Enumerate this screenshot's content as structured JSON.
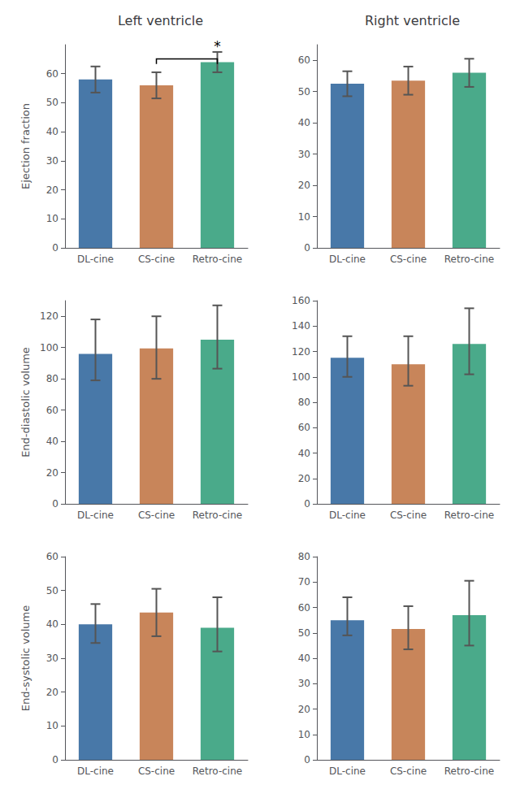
{
  "chart_data": [
    {
      "type": "bar",
      "title": "Left ventricle",
      "ylabel": "Ejection fraction",
      "categories": [
        "DL-cine",
        "CS-cine",
        "Retro-cine"
      ],
      "colors": [
        "#4878a8",
        "#c8855a",
        "#4aaa8a"
      ],
      "values": [
        58.0,
        56.0,
        64.0
      ],
      "err_low": [
        4.5,
        4.5,
        3.5
      ],
      "err_high": [
        4.5,
        4.5,
        3.5
      ],
      "annotations": [
        {
          "text": "*",
          "between": [
            "CS-cine",
            "Retro-cine"
          ]
        }
      ],
      "ylim": [
        0,
        70
      ],
      "yticks": [
        0,
        10,
        20,
        30,
        40,
        50,
        60
      ],
      "grid": false
    },
    {
      "type": "bar",
      "title": "Right ventricle",
      "categories": [
        "DL-cine",
        "CS-cine",
        "Retro-cine"
      ],
      "colors": [
        "#4878a8",
        "#c8855a",
        "#4aaa8a"
      ],
      "values": [
        52.5,
        53.5,
        56.0
      ],
      "err_low": [
        4.0,
        4.5,
        4.5
      ],
      "err_high": [
        4.0,
        4.5,
        4.5
      ],
      "ylim": [
        0,
        65
      ],
      "yticks": [
        0,
        10,
        20,
        30,
        40,
        50,
        60
      ],
      "grid": false
    },
    {
      "type": "bar",
      "ylabel": "End-diastolic volume",
      "categories": [
        "DL-cine",
        "CS-cine",
        "Retro-cine"
      ],
      "colors": [
        "#4878a8",
        "#c8855a",
        "#4aaa8a"
      ],
      "values": [
        96.0,
        99.5,
        105.0
      ],
      "err_low": [
        17.0,
        19.5,
        18.5
      ],
      "err_high": [
        22.0,
        20.5,
        22.0
      ],
      "ylim": [
        0,
        130
      ],
      "yticks": [
        0,
        20,
        40,
        60,
        80,
        100,
        120
      ],
      "grid": false
    },
    {
      "type": "bar",
      "categories": [
        "DL-cine",
        "CS-cine",
        "Retro-cine"
      ],
      "colors": [
        "#4878a8",
        "#c8855a",
        "#4aaa8a"
      ],
      "values": [
        115.0,
        110.0,
        126.0
      ],
      "err_low": [
        15.0,
        17.0,
        24.0
      ],
      "err_high": [
        17.0,
        22.0,
        28.0
      ],
      "ylim": [
        0,
        160
      ],
      "yticks": [
        0,
        20,
        40,
        60,
        80,
        100,
        120,
        140,
        160
      ],
      "grid": false
    },
    {
      "type": "bar",
      "ylabel": "End-systolic volume",
      "categories": [
        "DL-cine",
        "CS-cine",
        "Retro-cine"
      ],
      "colors": [
        "#4878a8",
        "#c8855a",
        "#4aaa8a"
      ],
      "values": [
        40.0,
        43.5,
        39.0
      ],
      "err_low": [
        5.5,
        7.0,
        7.0
      ],
      "err_high": [
        6.0,
        7.0,
        9.0
      ],
      "ylim": [
        0,
        60
      ],
      "yticks": [
        0,
        10,
        20,
        30,
        40,
        50,
        60
      ],
      "grid": false
    },
    {
      "type": "bar",
      "categories": [
        "DL-cine",
        "CS-cine",
        "Retro-cine"
      ],
      "colors": [
        "#4878a8",
        "#c8855a",
        "#4aaa8a"
      ],
      "values": [
        55.0,
        51.5,
        57.0
      ],
      "err_low": [
        6.0,
        8.0,
        12.0
      ],
      "err_high": [
        9.0,
        9.0,
        13.5
      ],
      "ylim": [
        0,
        80
      ],
      "yticks": [
        0,
        10,
        20,
        30,
        40,
        50,
        60,
        70,
        80
      ],
      "grid": false
    }
  ]
}
